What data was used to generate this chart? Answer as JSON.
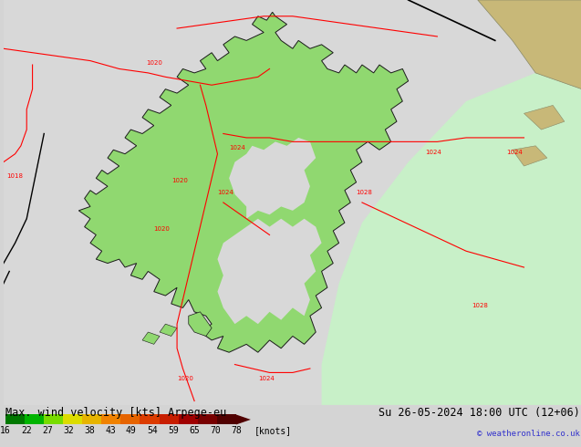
{
  "title_left": "Max. wind velocity [kts] Arpege-eu",
  "title_right": "Su 26-05-2024 18:00 UTC (12+06)",
  "copyright": "© weatheronline.co.uk",
  "colorbar_ticks": [
    16,
    22,
    27,
    32,
    38,
    43,
    49,
    54,
    59,
    65,
    70,
    78
  ],
  "colorbar_tick_label": "knots",
  "colorbar_colors": [
    "#007800",
    "#00b400",
    "#78dc00",
    "#dcdc00",
    "#e6b400",
    "#f08200",
    "#e66400",
    "#dc3c00",
    "#c81e00",
    "#a00000",
    "#780000",
    "#500000"
  ],
  "ocean_color": "#d8d8d8",
  "land_color": "#b4d4a0",
  "scandinavia_color": "#90d870",
  "greenland_color": "#c8c8c8",
  "russia_tan_color": "#c8b878",
  "russia_tan_edge": "#888866",
  "bottom_bg": "#ffffff",
  "isobar_color": "#ff0000",
  "black_line_color": "#000000",
  "title_fontsize": 8.5,
  "tick_fontsize": 7,
  "label_fontsize": 5,
  "diagonal_light_green": "#c8f0c8",
  "fig_bg": "#d4d4d4"
}
